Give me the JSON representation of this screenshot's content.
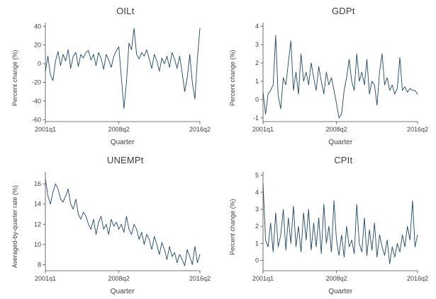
{
  "style": {
    "background_color": "#ffffff",
    "line_color": "#1a476f",
    "axis_color": "#4a4a4a",
    "text_color": "#404040"
  },
  "chart_data": [
    {
      "type": "line",
      "title": "OILt",
      "xlabel": "Quarter",
      "ylabel": "Percent change (%)",
      "ylim": [
        -62,
        44
      ],
      "yticks": [
        -60,
        -40,
        -20,
        0,
        20,
        40
      ],
      "xticks": [
        {
          "pos": 0,
          "label": "2001q1"
        },
        {
          "pos": 29,
          "label": "2008q2"
        },
        {
          "pos": 61,
          "label": "2016q2"
        }
      ],
      "grid": false,
      "legend": "none",
      "line_color": "#1a476f",
      "values": [
        -8,
        8,
        -12,
        -18,
        3,
        13,
        -2,
        10,
        3,
        15,
        -5,
        8,
        12,
        -3,
        10,
        6,
        12,
        14,
        4,
        10,
        -2,
        12,
        6,
        -6,
        10,
        4,
        -4,
        8,
        14,
        18,
        -15,
        -48,
        -20,
        22,
        15,
        38,
        10,
        5,
        12,
        8,
        15,
        5,
        -5,
        10,
        3,
        -8,
        6,
        0,
        8,
        -4,
        12,
        5,
        -5,
        8,
        -10,
        -30,
        -15,
        10,
        -20,
        -38,
        5,
        38
      ]
    },
    {
      "type": "line",
      "title": "GDPt",
      "xlabel": "Quarter",
      "ylabel": "Percent change (%)",
      "ylim": [
        -1.2,
        4.2
      ],
      "yticks": [
        -1,
        0,
        1,
        2,
        3,
        4
      ],
      "xticks": [
        {
          "pos": 0,
          "label": "2001q1"
        },
        {
          "pos": 29,
          "label": "2008q2"
        },
        {
          "pos": 61,
          "label": "2016q2"
        }
      ],
      "grid": false,
      "legend": "none",
      "line_color": "#1a476f",
      "values": [
        0.4,
        -0.8,
        0.3,
        0.5,
        0.8,
        3.5,
        0.2,
        -0.5,
        1.2,
        0.8,
        2.0,
        3.2,
        0.5,
        1.5,
        0.3,
        2.5,
        1.0,
        1.5,
        0.8,
        2.0,
        1.2,
        0.5,
        1.8,
        1.0,
        0.3,
        1.5,
        0.8,
        1.2,
        0.5,
        -0.2,
        -1.0,
        -0.8,
        0.5,
        1.2,
        2.2,
        1.0,
        0.5,
        2.5,
        1.0,
        1.5,
        0.8,
        2.2,
        0.3,
        1.0,
        0.8,
        -0.3,
        1.5,
        2.5,
        0.8,
        1.2,
        0.5,
        0.8,
        0.3,
        0.6,
        2.3,
        0.5,
        0.7,
        0.4,
        0.6,
        0.5,
        0.5,
        0.3
      ]
    },
    {
      "type": "line",
      "title": "UNEMPt",
      "xlabel": "Quarter",
      "ylabel": "Averaged-by-quarter rate (%)",
      "ylim": [
        7.4,
        17.2
      ],
      "yticks": [
        8,
        10,
        12,
        14,
        16
      ],
      "xticks": [
        {
          "pos": 0,
          "label": "2001q1"
        },
        {
          "pos": 29,
          "label": "2008q2"
        },
        {
          "pos": 61,
          "label": "2016q2"
        }
      ],
      "grid": false,
      "legend": "none",
      "line_color": "#1a476f",
      "values": [
        16.5,
        14.8,
        14.0,
        15.2,
        16.0,
        15.5,
        14.5,
        14.2,
        14.8,
        15.5,
        14.0,
        13.5,
        14.5,
        13.0,
        12.5,
        13.2,
        12.8,
        12.0,
        11.5,
        12.5,
        11.0,
        12.2,
        12.8,
        11.5,
        12.0,
        11.0,
        12.5,
        11.8,
        12.2,
        11.5,
        12.0,
        11.2,
        12.8,
        11.5,
        11.0,
        12.0,
        11.5,
        10.5,
        11.2,
        10.0,
        11.0,
        10.5,
        9.5,
        10.8,
        10.0,
        9.0,
        10.2,
        9.5,
        8.5,
        9.8,
        8.8,
        9.2,
        8.2,
        9.0,
        8.5,
        7.9,
        9.5,
        8.8,
        8.0,
        9.8,
        8.2,
        9.0
      ]
    },
    {
      "type": "line",
      "title": "CPIt",
      "xlabel": "Quarter",
      "ylabel": "Percent change (%)",
      "ylim": [
        -0.6,
        5.2
      ],
      "yticks": [
        0,
        1,
        2,
        3,
        4,
        5
      ],
      "xticks": [
        {
          "pos": 0,
          "label": "2001q1"
        },
        {
          "pos": 29,
          "label": "2008q2"
        },
        {
          "pos": 61,
          "label": "2016q2"
        }
      ],
      "grid": false,
      "legend": "none",
      "line_color": "#1a476f",
      "values": [
        4.5,
        1.2,
        0.8,
        2.2,
        0.5,
        2.8,
        0.8,
        1.5,
        3.0,
        0.6,
        2.5,
        1.0,
        3.2,
        0.8,
        2.0,
        0.5,
        2.8,
        1.2,
        3.0,
        0.6,
        2.2,
        0.8,
        2.5,
        0.4,
        3.3,
        1.0,
        2.0,
        0.5,
        3.5,
        1.2,
        0.3,
        1.5,
        0.2,
        2.0,
        0.8,
        1.2,
        0.4,
        3.3,
        1.0,
        0.5,
        2.5,
        0.3,
        1.8,
        0.6,
        2.2,
        0.2,
        1.5,
        0.8,
        0.3,
        1.2,
        -0.2,
        0.8,
        0.2,
        1.0,
        0.5,
        1.5,
        0.8,
        2.0,
        1.2,
        3.5,
        0.8,
        1.5
      ]
    }
  ]
}
